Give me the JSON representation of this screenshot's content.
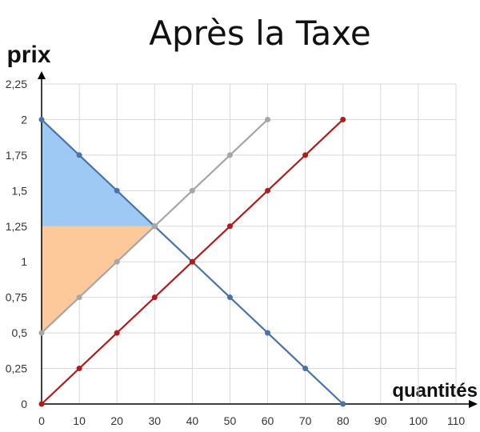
{
  "chart_data": {
    "type": "line",
    "title": "Après la Taxe",
    "ylabel": "prix",
    "xlabel": "quantités",
    "xlim": [
      0,
      110
    ],
    "ylim": [
      0,
      2.25
    ],
    "x_ticks": [
      "0",
      "10",
      "20",
      "30",
      "40",
      "50",
      "60",
      "70",
      "80",
      "90",
      "100",
      "110"
    ],
    "y_ticks": [
      "0",
      "0,25",
      "0,5",
      "0,75",
      "1",
      "1,25",
      "1,5",
      "1,75",
      "2",
      "2,25"
    ],
    "grid": true,
    "colors": {
      "demand": "#4a73a8",
      "supply_taxed": "#a6a6a6",
      "supply_original": "#b01c1c",
      "consumer_surplus": "#9fc9f5",
      "producer_surplus": "#fdc99b"
    },
    "series": [
      {
        "key": "demand",
        "x": [
          0,
          10,
          20,
          30,
          40,
          50,
          60,
          70,
          80
        ],
        "y": [
          2,
          1.75,
          1.5,
          1.25,
          1,
          0.75,
          0.5,
          0.25,
          0
        ]
      },
      {
        "key": "supply_taxed",
        "x": [
          0,
          10,
          20,
          30,
          40,
          50,
          60
        ],
        "y": [
          0.5,
          0.75,
          1,
          1.25,
          1.5,
          1.75,
          2
        ]
      },
      {
        "key": "supply_original",
        "x": [
          0,
          10,
          20,
          30,
          40,
          50,
          60,
          70,
          80
        ],
        "y": [
          0,
          0.25,
          0.5,
          0.75,
          1,
          1.25,
          1.5,
          1.75,
          2
        ]
      }
    ],
    "shaded_areas": [
      {
        "key": "consumer_surplus",
        "points": [
          [
            0,
            2
          ],
          [
            30,
            1.25
          ],
          [
            0,
            1.25
          ]
        ]
      },
      {
        "key": "producer_surplus",
        "points": [
          [
            0,
            1.25
          ],
          [
            30,
            1.25
          ],
          [
            0,
            0.5
          ]
        ]
      }
    ]
  }
}
